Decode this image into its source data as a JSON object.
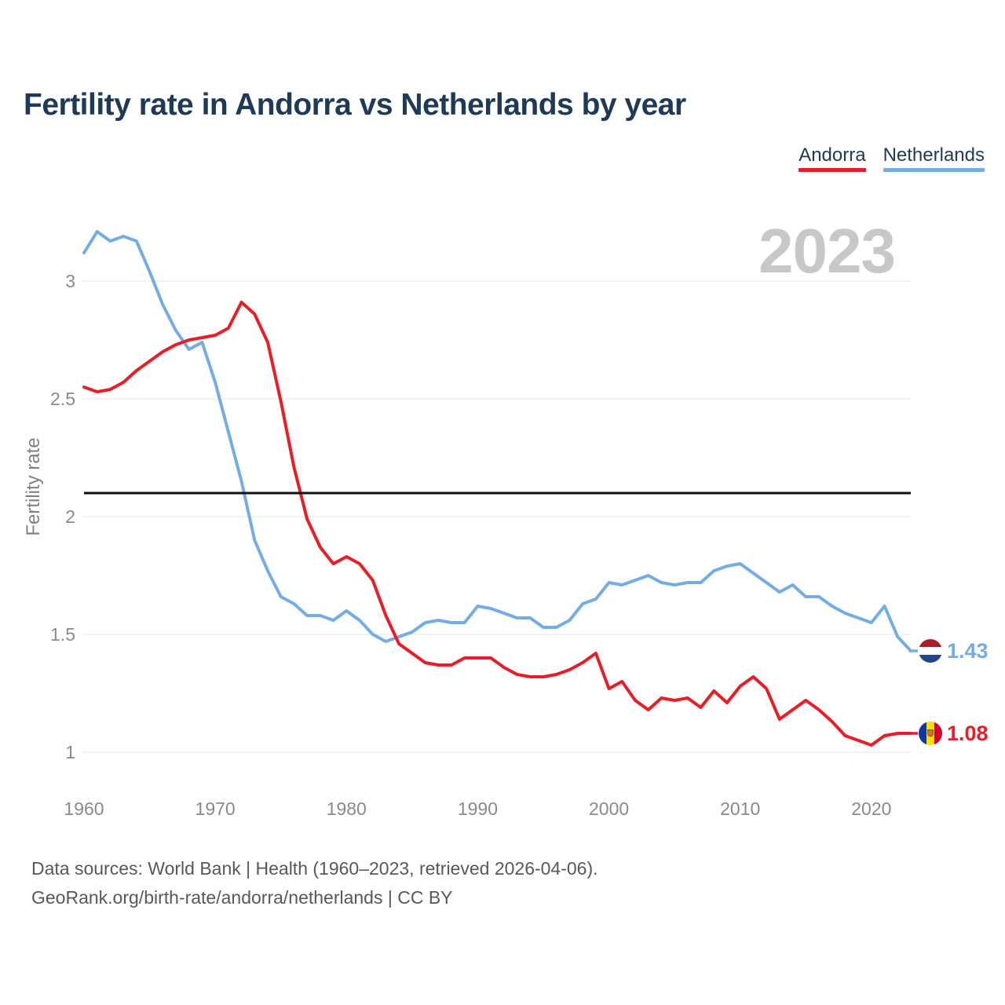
{
  "title": "Fertility rate in Andorra vs Netherlands by year",
  "watermark": "2023",
  "y_axis_label": "Fertility rate",
  "legend": {
    "items": [
      {
        "label": "Andorra"
      },
      {
        "label": "Netherlands"
      }
    ]
  },
  "caption": {
    "line1": "Data sources: World Bank | Health (1960–2023, retrieved 2026-04-06).",
    "line2": "GeoRank.org/birth-rate/andorra/netherlands | CC BY"
  },
  "flags": {
    "netherlands": {
      "name": "netherlands-flag",
      "stripes": [
        "#AE1C28",
        "#FFFFFF",
        "#21468B"
      ]
    },
    "andorra": {
      "name": "andorra-flag",
      "stripes": [
        "#1035A5",
        "#FEDD00",
        "#D50032"
      ]
    }
  },
  "chart_data": {
    "type": "line",
    "title": "Fertility rate in Andorra vs Netherlands by year",
    "xlabel": "",
    "ylabel": "Fertility rate",
    "watermark": "2023",
    "grid": true,
    "legend_position": "top-right",
    "xlim": [
      1960,
      2023
    ],
    "ylim": [
      0.9,
      3.35
    ],
    "x_ticks": [
      1960,
      1970,
      1980,
      1990,
      2000,
      2010,
      2020
    ],
    "y_ticks": [
      1,
      1.5,
      2,
      2.5,
      3
    ],
    "y_tick_labels": [
      "1",
      "1.5",
      "2",
      "2.5",
      "3"
    ],
    "reference_line": {
      "value": 2.1,
      "color": "#111111"
    },
    "x": [
      1960,
      1961,
      1962,
      1963,
      1964,
      1965,
      1966,
      1967,
      1968,
      1969,
      1970,
      1971,
      1972,
      1973,
      1974,
      1975,
      1976,
      1977,
      1978,
      1979,
      1980,
      1981,
      1982,
      1983,
      1984,
      1985,
      1986,
      1987,
      1988,
      1989,
      1990,
      1991,
      1992,
      1993,
      1994,
      1995,
      1996,
      1997,
      1998,
      1999,
      2000,
      2001,
      2002,
      2003,
      2004,
      2005,
      2006,
      2007,
      2008,
      2009,
      2010,
      2011,
      2012,
      2013,
      2014,
      2015,
      2016,
      2017,
      2018,
      2019,
      2020,
      2021,
      2022,
      2023
    ],
    "series": [
      {
        "name": "Netherlands",
        "color": "#74ade4",
        "end_label": "1.43",
        "end_value": 1.43,
        "values": [
          3.12,
          3.21,
          3.17,
          3.19,
          3.17,
          3.04,
          2.9,
          2.79,
          2.71,
          2.74,
          2.57,
          2.36,
          2.15,
          1.9,
          1.77,
          1.66,
          1.63,
          1.58,
          1.58,
          1.56,
          1.6,
          1.56,
          1.5,
          1.47,
          1.49,
          1.51,
          1.55,
          1.56,
          1.55,
          1.55,
          1.62,
          1.61,
          1.59,
          1.57,
          1.57,
          1.53,
          1.53,
          1.56,
          1.63,
          1.65,
          1.72,
          1.71,
          1.73,
          1.75,
          1.72,
          1.71,
          1.72,
          1.72,
          1.77,
          1.79,
          1.8,
          1.76,
          1.72,
          1.68,
          1.71,
          1.66,
          1.66,
          1.62,
          1.59,
          1.57,
          1.55,
          1.62,
          1.49,
          1.43
        ]
      },
      {
        "name": "Andorra",
        "color": "#ec1c27",
        "end_label": "1.08",
        "end_value": 1.08,
        "values": [
          2.55,
          2.53,
          2.54,
          2.57,
          2.62,
          2.66,
          2.7,
          2.73,
          2.75,
          2.76,
          2.77,
          2.8,
          2.91,
          2.86,
          2.74,
          2.49,
          2.21,
          1.99,
          1.87,
          1.8,
          1.83,
          1.8,
          1.73,
          1.58,
          1.46,
          1.42,
          1.38,
          1.37,
          1.37,
          1.4,
          1.4,
          1.4,
          1.36,
          1.33,
          1.32,
          1.32,
          1.33,
          1.35,
          1.38,
          1.42,
          1.27,
          1.3,
          1.22,
          1.18,
          1.23,
          1.22,
          1.23,
          1.19,
          1.26,
          1.21,
          1.28,
          1.32,
          1.27,
          1.14,
          1.18,
          1.22,
          1.18,
          1.13,
          1.07,
          1.05,
          1.03,
          1.07,
          1.08,
          1.08
        ]
      }
    ]
  }
}
